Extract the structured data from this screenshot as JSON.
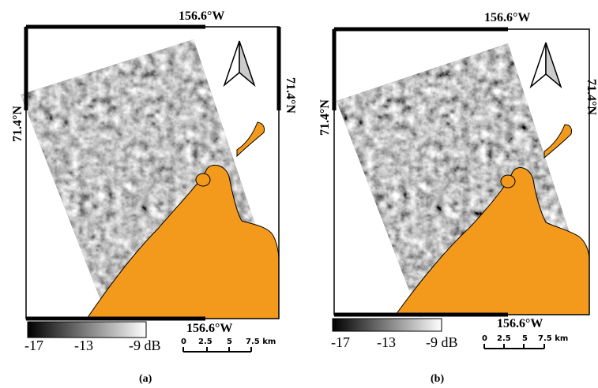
{
  "panels": [
    {
      "id": "a",
      "caption": "(a)",
      "lon_top": "156.6°W",
      "lon_bottom": "156.6°W",
      "lat_left": "71.4°N",
      "lat_right": "71.4°N",
      "colorbar_ticks": [
        "-17",
        "-13",
        "-9 dB"
      ],
      "scalebar_ticks": [
        "0",
        "2.5",
        "5",
        "7.5 km"
      ]
    },
    {
      "id": "b",
      "caption": "(b)",
      "lon_top": "156.6°W",
      "lon_bottom": "156.6°W",
      "lat_left": "71.4°N",
      "lat_right": "71.4°N",
      "colorbar_ticks": [
        "-17",
        "-13",
        "-9 dB"
      ],
      "scalebar_ticks": [
        "0",
        "2.5",
        "5",
        "7.5 km"
      ]
    }
  ],
  "colors": {
    "land": "#F39A1D",
    "frame": "#000000",
    "sar_dark": "#1a1a1a",
    "sar_light": "#e6e6e6"
  },
  "icons": [
    "north-arrow-icon"
  ]
}
